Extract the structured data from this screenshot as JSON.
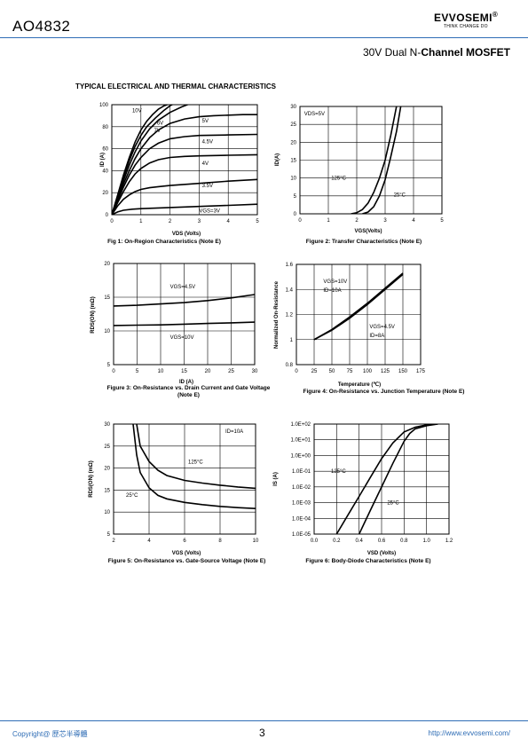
{
  "header": {
    "part": "AO4832",
    "logo": "EVVOSEMI",
    "reg": "®",
    "tagline": "THINK CHANGE DO",
    "subtitle_a": "30V  Dual N-",
    "subtitle_b": "Channel MOSFET"
  },
  "section_title": "TYPICAL ELECTRICAL AND THERMAL CHARACTERISTICS",
  "footer": {
    "copyright": "Copyright@ 歷芯半導體",
    "page": "3",
    "url": "http://www.evvosemi.com/"
  },
  "chart_data": [
    {
      "type": "line",
      "caption": "Fig 1: On-Region Characteristics (Note E)",
      "xlabel": "VDS (Volts)",
      "ylabel": "ID (A)",
      "xlim": [
        0,
        5
      ],
      "ylim": [
        0,
        100
      ],
      "xticks": [
        "0",
        "1",
        "2",
        "3",
        "4",
        "5"
      ],
      "yticks": [
        "0",
        "20",
        "40",
        "60",
        "80",
        "100"
      ],
      "series": [
        {
          "name": "10V",
          "x": [
            0,
            0.2,
            0.4,
            0.6,
            0.8,
            1.0,
            1.2,
            1.4,
            1.6,
            1.8,
            2.0,
            2.2
          ],
          "y": [
            0,
            18,
            36,
            52,
            66,
            77,
            85,
            91,
            96,
            99,
            101,
            103
          ]
        },
        {
          "name": "7V",
          "x": [
            0,
            0.2,
            0.4,
            0.6,
            0.8,
            1.0,
            1.2,
            1.5,
            1.8,
            2.0,
            2.3
          ],
          "y": [
            0,
            17,
            34,
            49,
            62,
            72,
            80,
            88,
            95,
            99,
            103
          ]
        },
        {
          "name": "6V",
          "x": [
            0,
            0.2,
            0.4,
            0.6,
            0.8,
            1.0,
            1.3,
            1.6,
            2.0,
            2.4,
            2.8
          ],
          "y": [
            0,
            16,
            31,
            45,
            57,
            67,
            78,
            86,
            93,
            98,
            102
          ]
        },
        {
          "name": "5V",
          "x": [
            0,
            0.2,
            0.4,
            0.6,
            0.8,
            1.0,
            1.3,
            1.6,
            2.0,
            2.5,
            3.0,
            3.5,
            4.0,
            4.5,
            5.0
          ],
          "y": [
            0,
            15,
            28,
            40,
            51,
            60,
            70,
            77,
            83,
            87,
            89,
            90,
            90.5,
            91,
            91
          ]
        },
        {
          "name": "4.5V",
          "x": [
            0,
            0.2,
            0.4,
            0.6,
            0.8,
            1.0,
            1.3,
            1.6,
            2.0,
            2.5,
            3.0,
            4.0,
            5.0
          ],
          "y": [
            0,
            13,
            25,
            36,
            45,
            52,
            60,
            65,
            69,
            71,
            72,
            72.5,
            73
          ]
        },
        {
          "name": "4V",
          "x": [
            0,
            0.2,
            0.4,
            0.6,
            0.8,
            1.0,
            1.3,
            1.6,
            2.0,
            2.5,
            3.0,
            4.0,
            5.0
          ],
          "y": [
            0,
            11,
            21,
            30,
            37,
            42,
            47,
            50,
            52,
            53,
            53.5,
            54,
            54.5
          ]
        },
        {
          "name": "3.5V",
          "x": [
            0,
            0.2,
            0.4,
            0.6,
            0.8,
            1.0,
            1.3,
            1.6,
            2.0,
            3.0,
            4.0,
            5.0
          ],
          "y": [
            0,
            8,
            14,
            18,
            21,
            23,
            24.5,
            25.5,
            26.5,
            28.5,
            30.5,
            32
          ]
        },
        {
          "name": "VGS=3V",
          "x": [
            0,
            0.2,
            0.4,
            0.7,
            1.0,
            2.0,
            3.0,
            4.0,
            5.0
          ],
          "y": [
            0,
            2.5,
            4,
            5,
            5.5,
            6.5,
            7.5,
            8.5,
            9.5
          ]
        }
      ],
      "labels": [
        {
          "text": "10V",
          "x": 0.7,
          "y": 93
        },
        {
          "text": "6V",
          "x": 1.55,
          "y": 82
        },
        {
          "text": "7V",
          "x": 1.45,
          "y": 75
        },
        {
          "text": "5V",
          "x": 3.1,
          "y": 84
        },
        {
          "text": "4.5V",
          "x": 3.1,
          "y": 65
        },
        {
          "text": "4V",
          "x": 3.1,
          "y": 45
        },
        {
          "text": "3.5V",
          "x": 3.1,
          "y": 25
        },
        {
          "text": "VGS=3V",
          "x": 3.0,
          "y": 2
        }
      ]
    },
    {
      "type": "line",
      "caption": "Figure 2: Transfer Characteristics (Note E)",
      "xlabel": "VGS(Volts)",
      "ylabel": "ID(A)",
      "xlim": [
        0,
        5
      ],
      "ylim": [
        0,
        30
      ],
      "xticks": [
        "0",
        "1",
        "2",
        "3",
        "4",
        "5"
      ],
      "yticks": [
        "0",
        "5",
        "10",
        "15",
        "20",
        "25",
        "30"
      ],
      "series": [
        {
          "name": "125°C",
          "x": [
            1.8,
            2.0,
            2.2,
            2.4,
            2.6,
            2.8,
            3.0,
            3.2,
            3.4
          ],
          "y": [
            0,
            0.3,
            1.2,
            3,
            6,
            10,
            15,
            22,
            30
          ]
        },
        {
          "name": "25°C",
          "x": [
            2.2,
            2.4,
            2.6,
            2.8,
            3.0,
            3.2,
            3.4,
            3.55
          ],
          "y": [
            0,
            0.5,
            2,
            5,
            9.5,
            16,
            23,
            30
          ]
        }
      ],
      "labels": [
        {
          "text": "VDS=5V",
          "x": 0.15,
          "y": 27.5
        },
        {
          "text": "125°C",
          "x": 1.1,
          "y": 9.5
        },
        {
          "text": "25°C",
          "x": 3.3,
          "y": 4.8
        }
      ]
    },
    {
      "type": "line",
      "caption": "Figure 3: On-Resistance vs. Drain Current and Gate Voltage (Note E)",
      "xlabel": "ID (A)",
      "ylabel": "RDS(ON) (mΩ)",
      "xlim": [
        0,
        30
      ],
      "ylim": [
        5,
        20
      ],
      "xticks": [
        "0",
        "5",
        "10",
        "15",
        "20",
        "25",
        "30"
      ],
      "yticks": [
        "5",
        "10",
        "15",
        "20"
      ],
      "series": [
        {
          "name": "VGS=4.5V",
          "x": [
            0,
            5,
            10,
            15,
            20,
            25,
            30
          ],
          "y": [
            13.7,
            13.8,
            14.0,
            14.2,
            14.5,
            14.9,
            15.4
          ]
        },
        {
          "name": "VGS=10V",
          "x": [
            0,
            5,
            10,
            15,
            20,
            25,
            30
          ],
          "y": [
            10.8,
            10.85,
            10.9,
            11.0,
            11.1,
            11.2,
            11.3
          ]
        }
      ],
      "labels": [
        {
          "text": "VGS=4.5V",
          "x": 12,
          "y": 16.3
        },
        {
          "text": "VGS=10V",
          "x": 12,
          "y": 8.8
        }
      ]
    },
    {
      "type": "line",
      "caption": "Figure 4: On-Resistance vs. Junction Temperature (Note E)",
      "xlabel": "Temperature (℃)",
      "ylabel": "Normalized On-Resistance",
      "xlim": [
        0,
        175
      ],
      "ylim": [
        0.8,
        1.6
      ],
      "xticks": [
        "0",
        "25",
        "50",
        "75",
        "100",
        "125",
        "150",
        "175"
      ],
      "yticks": [
        "0.8",
        "1",
        "1.2",
        "1.4",
        "1.6"
      ],
      "series": [
        {
          "name": "VGS=10V",
          "x": [
            25,
            50,
            75,
            100,
            125,
            150
          ],
          "y": [
            1.0,
            1.08,
            1.18,
            1.29,
            1.41,
            1.53
          ]
        },
        {
          "name": "VGS=4.5V",
          "x": [
            25,
            50,
            75,
            100,
            125,
            150
          ],
          "y": [
            1.0,
            1.075,
            1.17,
            1.28,
            1.4,
            1.52
          ]
        }
      ],
      "labels": [
        {
          "text": "VGS=10V",
          "x": 38,
          "y": 1.45
        },
        {
          "text": "ID=10A",
          "x": 38,
          "y": 1.38
        },
        {
          "text": "VGS=4.5V",
          "x": 103,
          "y": 1.09
        },
        {
          "text": "ID=8A",
          "x": 103,
          "y": 1.02
        }
      ]
    },
    {
      "type": "line",
      "caption": "Figure 5: On-Resistance vs. Gate-Source Voltage (Note E)",
      "xlabel": "VGS (Volts)",
      "ylabel": "RDS(ON) (mΩ)",
      "xlim": [
        2,
        10
      ],
      "ylim": [
        5,
        30
      ],
      "xticks": [
        "2",
        "4",
        "6",
        "8",
        "10"
      ],
      "yticks": [
        "5",
        "10",
        "15",
        "20",
        "25",
        "30"
      ],
      "series": [
        {
          "name": "125°C",
          "x": [
            3.3,
            3.5,
            4,
            4.5,
            5,
            6,
            7,
            8,
            9,
            10
          ],
          "y": [
            30,
            25,
            21.5,
            19.5,
            18.3,
            17.2,
            16.6,
            16.1,
            15.7,
            15.4
          ]
        },
        {
          "name": "25°C",
          "x": [
            3.1,
            3.3,
            3.5,
            4,
            4.5,
            5,
            6,
            7,
            8,
            9,
            10
          ],
          "y": [
            30,
            23,
            19,
            15.5,
            13.8,
            13,
            12.2,
            11.7,
            11.3,
            11,
            10.8
          ]
        }
      ],
      "labels": [
        {
          "text": "ID=10A",
          "x": 8.3,
          "y": 28
        },
        {
          "text": "125°C",
          "x": 6.2,
          "y": 21
        },
        {
          "text": "25°C",
          "x": 2.7,
          "y": 13.5
        }
      ]
    },
    {
      "type": "line",
      "caption": "Figure 6: Body-Diode Characteristics (Note E)",
      "xlabel": "VSD (Volts)",
      "ylabel": "IS (A)",
      "xlim": [
        0,
        1.2
      ],
      "ylim": [
        -5,
        2
      ],
      "log_y": true,
      "xticks": [
        "0.0",
        "0.2",
        "0.4",
        "0.6",
        "0.8",
        "1.0",
        "1.2"
      ],
      "yticks": [
        "1.0E-05",
        "1.0E-04",
        "1.0E-03",
        "1.0E-02",
        "1.0E-01",
        "1.0E+00",
        "1.0E+01",
        "1.0E+02"
      ],
      "series": [
        {
          "name": "125°C",
          "x": [
            0.2,
            0.3,
            0.4,
            0.5,
            0.6,
            0.7,
            0.8,
            0.9,
            1.0,
            1.1
          ],
          "y": [
            -5,
            -3.8,
            -2.6,
            -1.4,
            -0.2,
            0.8,
            1.5,
            1.8,
            1.95,
            2
          ]
        },
        {
          "name": "25°C",
          "x": [
            0.4,
            0.5,
            0.6,
            0.7,
            0.8,
            0.85,
            0.9,
            1.0,
            1.1
          ],
          "y": [
            -5,
            -3.5,
            -2,
            -0.5,
            0.9,
            1.4,
            1.7,
            1.9,
            2
          ]
        }
      ],
      "labels": [
        {
          "text": "125°C",
          "x": 0.15,
          "y": -1.1
        },
        {
          "text": "25°C",
          "x": 0.65,
          "y": -3.1
        }
      ]
    }
  ]
}
